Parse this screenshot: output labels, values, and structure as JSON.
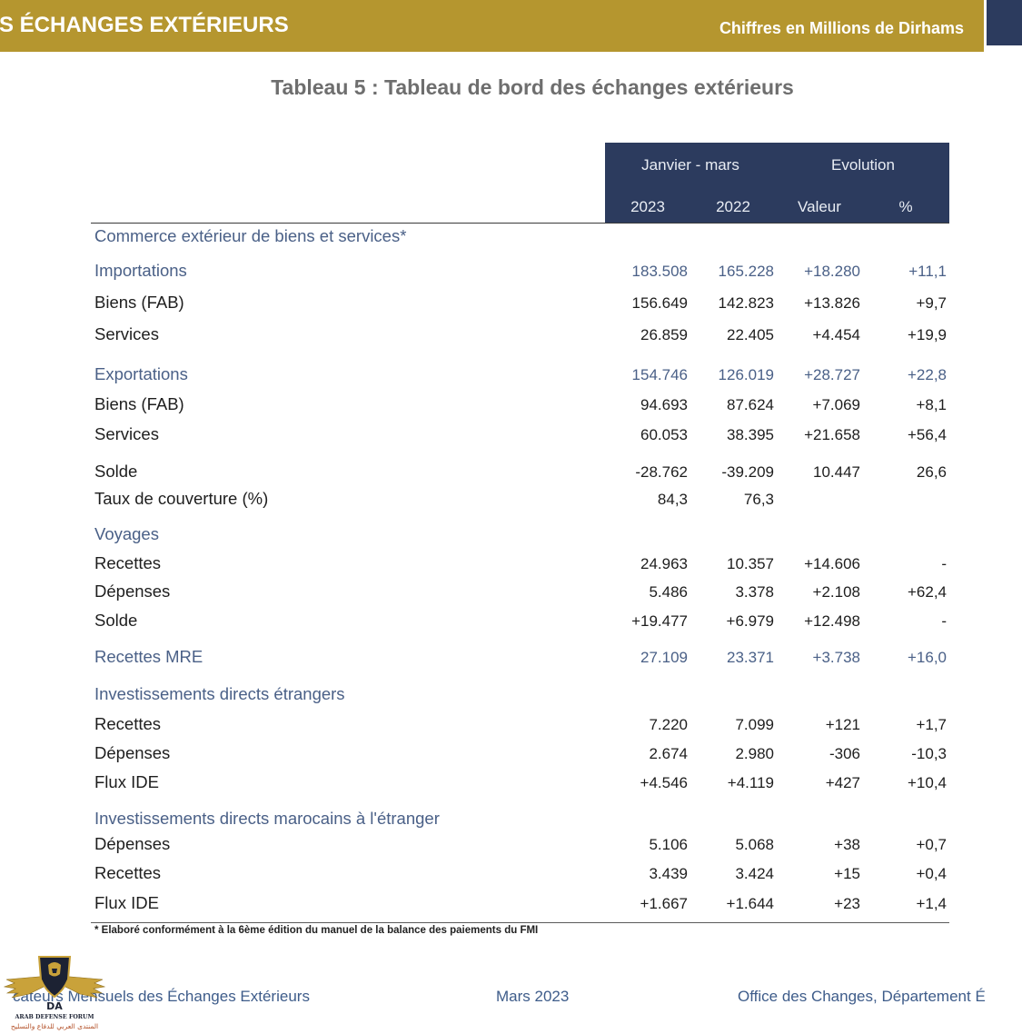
{
  "header": {
    "section_title": "S ÉCHANGES EXTÉRIEURS",
    "unit_note": "Chiffres en Millions de Dirhams"
  },
  "title": "Tableau 5 : Tableau de bord des échanges extérieurs",
  "table": {
    "group_headers": {
      "period": "Janvier - mars",
      "evolution": "Evolution"
    },
    "columns": [
      "2023",
      "2022",
      "Valeur",
      "%"
    ],
    "rows": [
      {
        "label": "Commerce extérieur de biens et services*",
        "color": "#4A6087"
      },
      {
        "label": "Importations",
        "values": [
          "183.508",
          "165.228",
          "+18.280",
          "+11,1"
        ],
        "color": "#4A6087"
      },
      {
        "label": "Biens (FAB)",
        "values": [
          "156.649",
          "142.823",
          "+13.826",
          "+9,7"
        ]
      },
      {
        "label": "Services",
        "values": [
          "26.859",
          "22.405",
          "+4.454",
          "+19,9"
        ]
      },
      {
        "label": "Exportations",
        "values": [
          "154.746",
          "126.019",
          "+28.727",
          "+22,8"
        ],
        "color": "#4A6087"
      },
      {
        "label": "Biens (FAB)",
        "values": [
          "94.693",
          "87.624",
          "+7.069",
          "+8,1"
        ]
      },
      {
        "label": "Services",
        "values": [
          "60.053",
          "38.395",
          "+21.658",
          "+56,4"
        ]
      },
      {
        "label": "Solde",
        "values": [
          "-28.762",
          "-39.209",
          "10.447",
          "26,6"
        ]
      },
      {
        "label": "Taux de couverture (%)",
        "values": [
          "84,3",
          "76,3"
        ]
      },
      {
        "label": "Voyages",
        "color": "#4A6087"
      },
      {
        "label": "Recettes",
        "values": [
          "24.963",
          "10.357",
          "+14.606",
          "-"
        ]
      },
      {
        "label": "Dépenses",
        "values": [
          "5.486",
          "3.378",
          "+2.108",
          "+62,4"
        ]
      },
      {
        "label": "Solde",
        "values": [
          "+19.477",
          "+6.979",
          "+12.498",
          "-"
        ]
      },
      {
        "label": "Recettes MRE",
        "values": [
          "27.109",
          "23.371",
          "+3.738",
          "+16,0"
        ],
        "color": "#4A6087"
      },
      {
        "label": "Investissements directs étrangers",
        "color": "#4A6087"
      },
      {
        "label": "Recettes",
        "values": [
          "7.220",
          "7.099",
          "+121",
          "+1,7"
        ]
      },
      {
        "label": "Dépenses",
        "values": [
          "2.674",
          "2.980",
          "-306",
          "-10,3"
        ]
      },
      {
        "label": "Flux IDE",
        "values": [
          "+4.546",
          "+4.119",
          "+427",
          "+10,4"
        ]
      },
      {
        "label": "Investissements directs marocains à l'étranger",
        "color": "#4A6087"
      },
      {
        "label": "Dépenses",
        "values": [
          "5.106",
          "5.068",
          "+38",
          "+0,7"
        ]
      },
      {
        "label": "Recettes",
        "values": [
          "3.439",
          "3.424",
          "+15",
          "+0,4"
        ]
      },
      {
        "label": "Flux IDE",
        "values": [
          "+1.667",
          "+1.644",
          "+23",
          "+1,4"
        ]
      }
    ]
  },
  "footnote": "* Elaboré conformément à la 6ème édition du manuel de la balance des paiements du FMI",
  "footer": {
    "publication": "cateurs Mensuels des Échanges Extérieurs",
    "date": "Mars 2023",
    "publisher": "Office des Changes, Département É"
  },
  "logo": {
    "icon": "winged-shield-icon",
    "monogram": "DA",
    "name": "ARAB DEFENSE FORUM",
    "arabic_name": "المنتدى العربي للدفاع والتسليح"
  },
  "colors": {
    "banner": "#B5962F",
    "banner_end": "#2C3B5E",
    "table_header": "#2C3B5E",
    "accent_text": "#4A6087",
    "body_text": "#1E1E1E",
    "footer_text": "#3E5C8A",
    "title_text": "#6E6E6E"
  }
}
